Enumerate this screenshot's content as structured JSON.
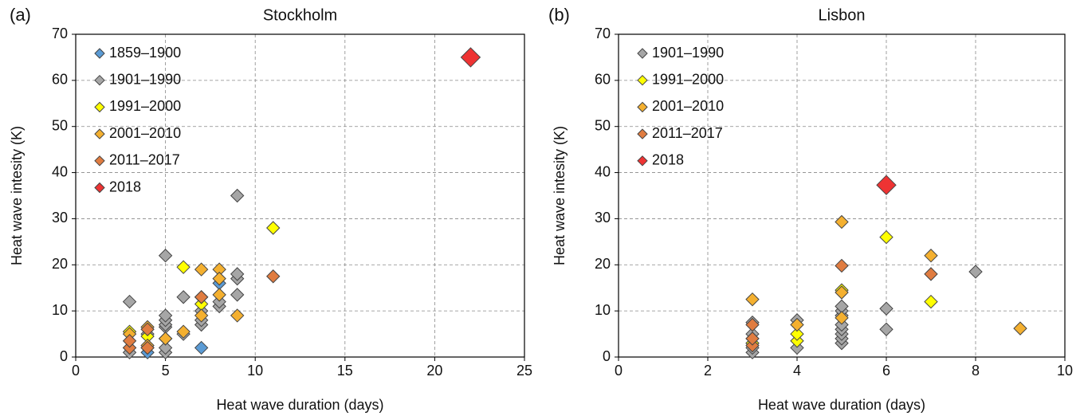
{
  "chart_data": [
    {
      "type": "scatter",
      "label": "(a)",
      "title": "Stockholm",
      "xlabel": "Heat wave duration (days)",
      "ylabel": "Heat wave intesity (K)",
      "xlim": [
        0,
        25
      ],
      "xticks": [
        0,
        5,
        10,
        15,
        20,
        25
      ],
      "ylim": [
        0,
        70
      ],
      "yticks": [
        0,
        10,
        20,
        30,
        40,
        50,
        60,
        70
      ],
      "grid": true,
      "legend": "upper left",
      "series": [
        {
          "name": "1859–1900",
          "color": "#5b9bd5",
          "marker_size": 8,
          "x": [
            4,
            7,
            8
          ],
          "values": [
            1,
            2,
            16
          ]
        },
        {
          "name": "1901–1990",
          "color": "#a6a6a6",
          "marker_size": 8,
          "x": [
            3,
            3,
            3,
            4,
            4,
            5,
            5,
            5,
            5,
            5,
            5,
            5,
            6,
            6,
            7,
            7,
            7,
            7,
            8,
            8,
            9,
            9,
            9,
            9
          ],
          "values": [
            1,
            2,
            12,
            2,
            5,
            1,
            2,
            6.5,
            7,
            8,
            9,
            22,
            5,
            13,
            7,
            8,
            10,
            13,
            11,
            12,
            13.5,
            17,
            18,
            35
          ]
        },
        {
          "name": "1991–2000",
          "color": "#ffff00",
          "marker_size": 8,
          "x": [
            3,
            4,
            5,
            6,
            7,
            11
          ],
          "values": [
            5.5,
            4.5,
            4,
            19.5,
            11.5,
            28
          ]
        },
        {
          "name": "2001–2010",
          "color": "#f4b030",
          "marker_size": 8,
          "x": [
            3,
            4,
            4,
            5,
            6,
            7,
            7,
            7,
            8,
            8,
            8,
            9
          ],
          "values": [
            5,
            6.5,
            2.5,
            4,
            5.5,
            19,
            13,
            9,
            19,
            17,
            13.5,
            9
          ]
        },
        {
          "name": "2011–2017",
          "color": "#e07c40",
          "marker_size": 8,
          "x": [
            3,
            3,
            4,
            4,
            7,
            11
          ],
          "values": [
            2,
            3.5,
            6,
            2,
            13,
            17.5
          ]
        },
        {
          "name": "2018",
          "color": "#ee3333",
          "marker_size": 12,
          "x": [
            22
          ],
          "values": [
            65
          ]
        }
      ]
    },
    {
      "type": "scatter",
      "label": "(b)",
      "title": "Lisbon",
      "xlabel": "Heat wave duration (days)",
      "ylabel": "Heat wave intesity (K)",
      "xlim": [
        0,
        10
      ],
      "xticks": [
        0,
        2,
        4,
        6,
        8,
        10
      ],
      "ylim": [
        0,
        70
      ],
      "yticks": [
        0,
        10,
        20,
        30,
        40,
        50,
        60,
        70
      ],
      "grid": true,
      "legend": "upper left",
      "series": [
        {
          "name": "1901–1990",
          "color": "#a6a6a6",
          "marker_size": 8,
          "x": [
            3,
            3,
            3,
            3,
            3,
            4,
            4,
            5,
            5,
            5,
            5,
            5,
            5,
            5,
            5,
            6,
            6,
            8
          ],
          "values": [
            1,
            2,
            3,
            5,
            7.5,
            2,
            8,
            3,
            4,
            5,
            6,
            7,
            9,
            10,
            11,
            6,
            10.5,
            18.5
          ]
        },
        {
          "name": "1991–2000",
          "color": "#ffff00",
          "marker_size": 8,
          "x": [
            3,
            4,
            4,
            5,
            6,
            7
          ],
          "values": [
            3,
            3.5,
            5,
            14.5,
            26,
            12
          ]
        },
        {
          "name": "2001–2010",
          "color": "#f4b030",
          "marker_size": 8,
          "x": [
            3,
            3,
            4,
            5,
            5,
            5,
            7,
            9
          ],
          "values": [
            12.5,
            4,
            7,
            29.3,
            14,
            8.5,
            22,
            6.2
          ]
        },
        {
          "name": "2011–2017",
          "color": "#e07c40",
          "marker_size": 8,
          "x": [
            3,
            3,
            3,
            5,
            7
          ],
          "values": [
            2.5,
            4,
            7,
            19.8,
            18
          ]
        },
        {
          "name": "2018",
          "color": "#ee3333",
          "marker_size": 12,
          "x": [
            6
          ],
          "values": [
            37.3
          ]
        }
      ]
    }
  ]
}
